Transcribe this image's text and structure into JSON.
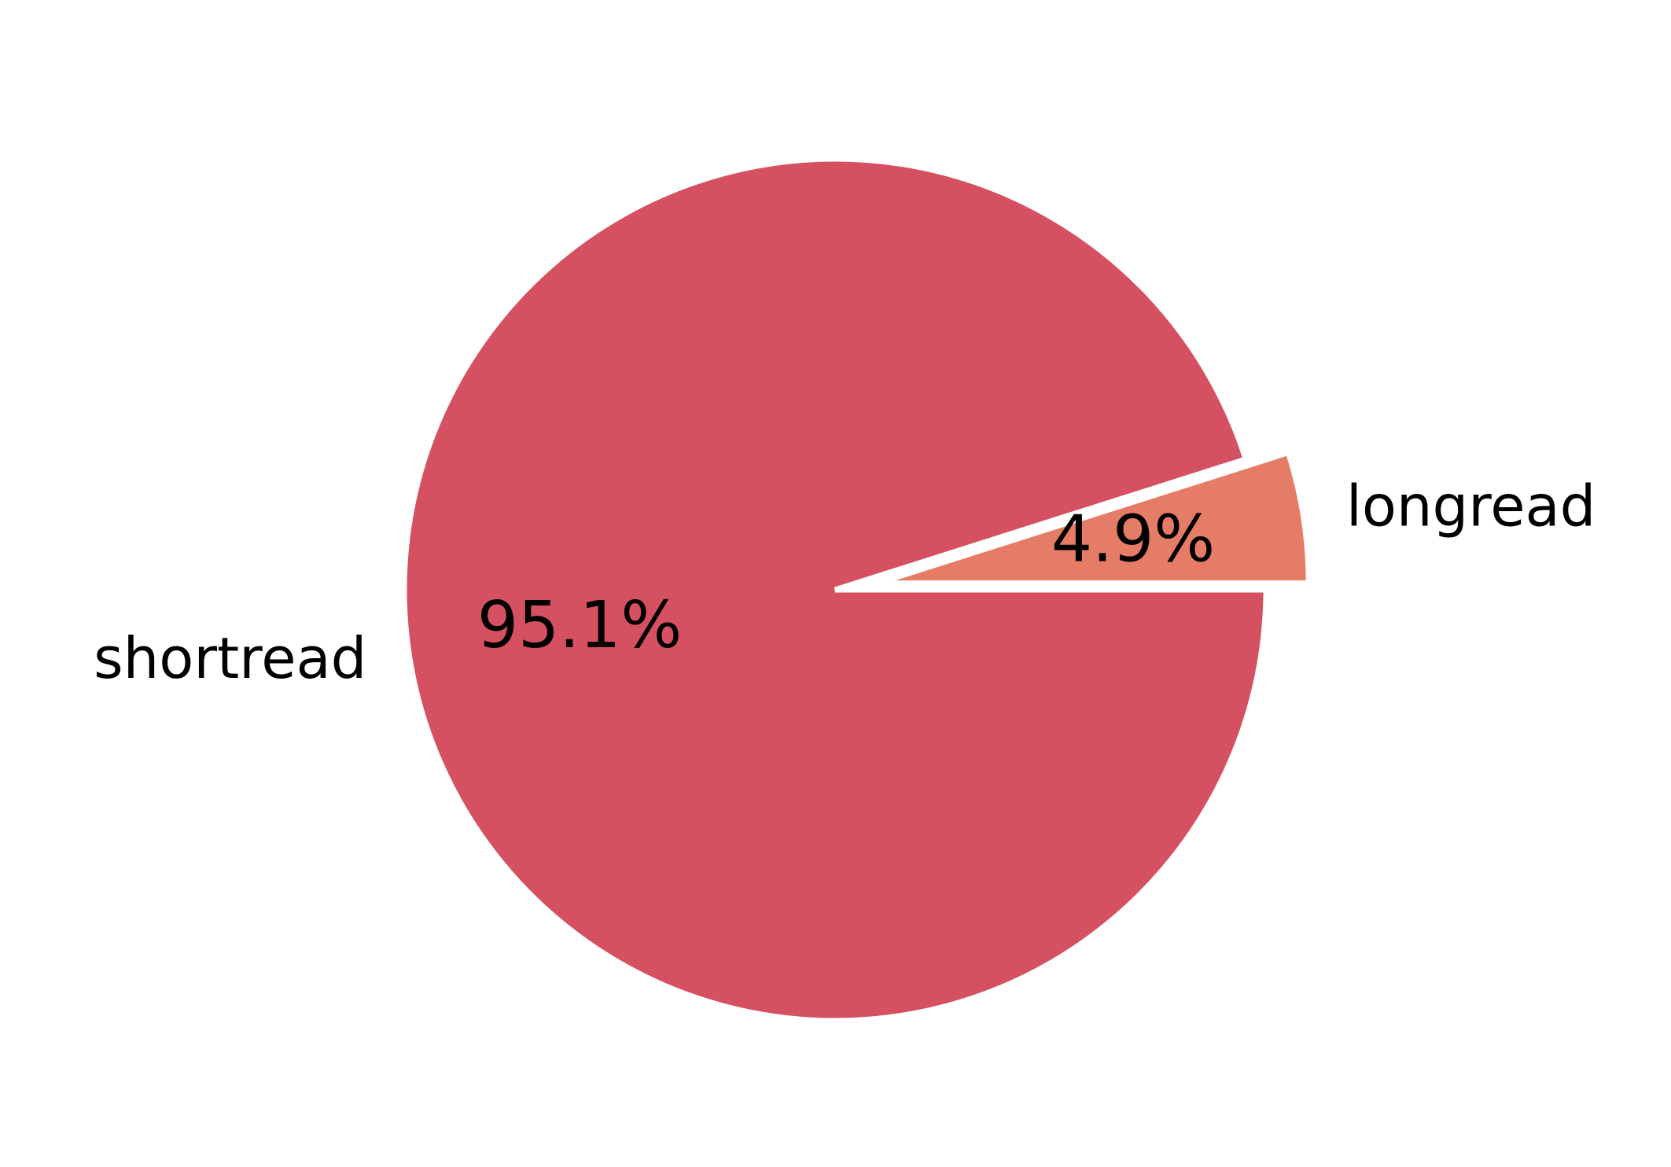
{
  "chart_data": {
    "type": "pie",
    "title": "",
    "slices": [
      {
        "label": "longread",
        "value": 4.9,
        "pct_label": "4.9%",
        "color": "#E57C66",
        "exploded": true
      },
      {
        "label": "shortread",
        "value": 95.1,
        "pct_label": "95.1%",
        "color": "#D55060",
        "exploded": false
      }
    ],
    "start_angle_deg": 0,
    "direction": "counterclockwise",
    "legend": "none"
  }
}
